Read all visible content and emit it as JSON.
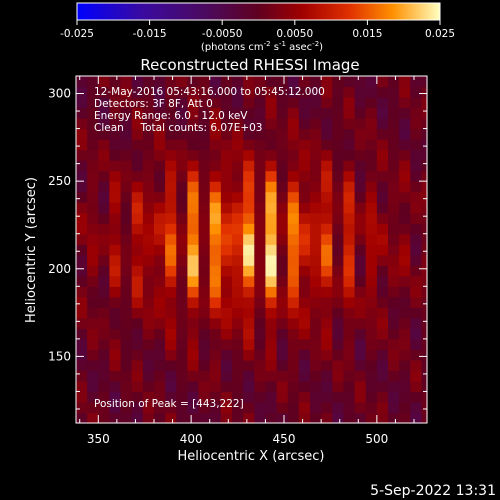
{
  "chart_data": {
    "type": "heatmap",
    "title": "Reconstructed RHESSI Image",
    "xlabel": "Heliocentric X (arcsec)",
    "ylabel": "Heliocentric Y (arcsec)",
    "xlim": [
      338,
      527
    ],
    "ylim": [
      112,
      310
    ],
    "x_ticks": [
      350,
      400,
      450,
      500
    ],
    "y_ticks": [
      150,
      200,
      250,
      300
    ],
    "colorbar": {
      "range": [
        -0.025,
        0.025
      ],
      "ticks": [
        "-0.025",
        "-0.015",
        "-0.0050",
        "0.0050",
        "0.015",
        "0.025"
      ],
      "label_text": "(photons cm",
      "label_exp1": "-2",
      "label_mid1": " s",
      "label_exp2": "-1",
      "label_mid2": " asec",
      "label_exp3": "-2",
      "label_end": ")"
    },
    "annotations": [
      "12-May-2016 05:43:16.000 to 05:45:12.000",
      "Detectors: 3F 8F, Att 0",
      "Energy Range: 6.0 - 12.0 keV",
      "Clean     Total counts: 6.07E+03"
    ],
    "peak_label": "Position of Peak = [443,222]",
    "peak": [
      443,
      222
    ],
    "source": {
      "x": 430,
      "y": 215,
      "peak_value": 0.025,
      "sigma_x": 45,
      "sigma_y": 30
    },
    "grid": false
  },
  "footer": {
    "timestamp": "5-Sep-2022 13:31"
  }
}
